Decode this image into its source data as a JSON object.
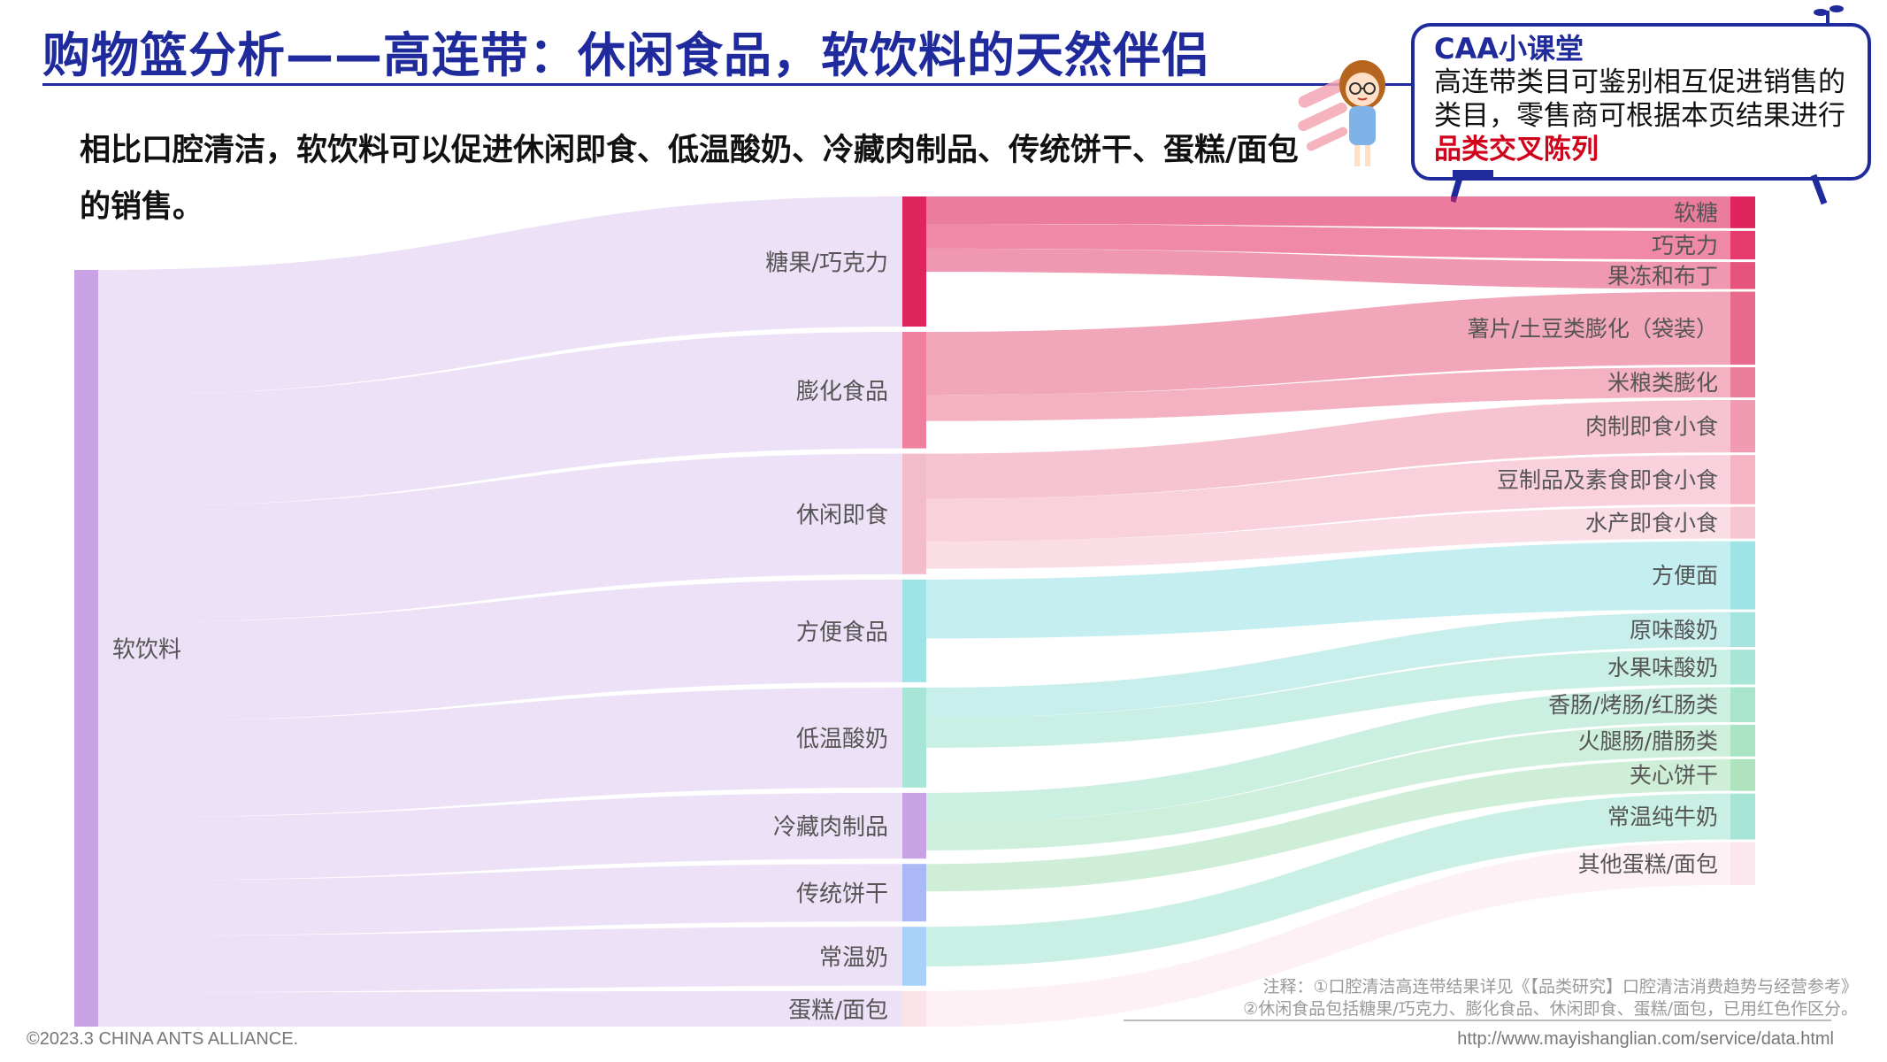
{
  "header": {
    "title": "购物篮分析——高连带：休闲食品，软饮料的天然伴侣",
    "subtitle": "相比口腔清洁，软饮料可以促进休闲即食、低温酸奶、冷藏肉制品、传统饼干、蛋糕/面包的销售。"
  },
  "tip": {
    "title": "CAA小课堂",
    "body_prefix": "高连带类目可鉴别相互促进销售的类目，零售商可根据本页结果进行",
    "body_highlight": "品类交叉陈列"
  },
  "notes": {
    "line1": "注释：①口腔清洁高连带结果详见《【品类研究】口腔清洁消费趋势与经营参考》",
    "line2": "②休闲食品包括糖果/巧克力、膨化食品、休闲即食、蛋糕/面包，已用红色作区分。"
  },
  "footer": {
    "copyright": "©2023.3 CHINA ANTS ALLIANCE.",
    "url": "http://www.mayishanglian.com/service/data.html"
  },
  "colors": {
    "title": "#1f2a9c",
    "highlight": "#d0021b",
    "source_node": "#c9a2e6",
    "source_flow": "#e9dcf5"
  },
  "chart_data": {
    "type": "sankey",
    "source": {
      "name": "软饮料",
      "color": "#c9a2e6"
    },
    "level1": [
      {
        "name": "糖果/巧克力",
        "value": 9.5,
        "color": "#e0245e"
      },
      {
        "name": "膨化食品",
        "value": 8.5,
        "color": "#ee7f9e"
      },
      {
        "name": "休闲即食",
        "value": 8.8,
        "color": "#f3bccb"
      },
      {
        "name": "方便食品",
        "value": 7.5,
        "color": "#9ee3e6"
      },
      {
        "name": "低温酸奶",
        "value": 7.3,
        "color": "#a7e6d6"
      },
      {
        "name": "冷藏肉制品",
        "value": 4.8,
        "color": "#c9a2e6"
      },
      {
        "name": "传统饼干",
        "value": 4.2,
        "color": "#aab8f5"
      },
      {
        "name": "常温奶",
        "value": 4.3,
        "color": "#a8d1f7"
      },
      {
        "name": "蛋糕/面包",
        "value": 2.6,
        "color": "#fbe3ea"
      }
    ],
    "level2": [
      {
        "name": "软糖",
        "parent": 0,
        "value": 2.0,
        "color": "#e0245e"
      },
      {
        "name": "巧克力",
        "parent": 0,
        "value": 1.8,
        "color": "#e43a6c"
      },
      {
        "name": "果冻和布丁",
        "parent": 0,
        "value": 1.7,
        "color": "#e6547d"
      },
      {
        "name": "薯片/土豆类膨化（袋装）",
        "parent": 1,
        "value": 4.6,
        "color": "#e86a8c"
      },
      {
        "name": "米粮类膨化",
        "parent": 1,
        "value": 1.9,
        "color": "#ec7d9a"
      },
      {
        "name": "肉制即食小食",
        "parent": 2,
        "value": 3.3,
        "color": "#f09bb2"
      },
      {
        "name": "豆制品及素食即食小食",
        "parent": 2,
        "value": 3.1,
        "color": "#f5b3c4"
      },
      {
        "name": "水产即食小食",
        "parent": 2,
        "value": 2.0,
        "color": "#f7c6d3"
      },
      {
        "name": "方便面",
        "parent": 3,
        "value": 4.3,
        "color": "#9ee3e6"
      },
      {
        "name": "原味酸奶",
        "parent": 4,
        "value": 2.2,
        "color": "#a4e5df"
      },
      {
        "name": "水果味酸奶",
        "parent": 4,
        "value": 2.2,
        "color": "#a7e6d6"
      },
      {
        "name": "香肠/烤肠/红肠类",
        "parent": 5,
        "value": 2.2,
        "color": "#a8e5cc"
      },
      {
        "name": "火腿肠/腊肠类",
        "parent": 5,
        "value": 2.0,
        "color": "#abe4c4"
      },
      {
        "name": "夹心饼干",
        "parent": 6,
        "value": 2.0,
        "color": "#aee3bd"
      },
      {
        "name": "常温纯牛奶",
        "parent": 7,
        "value": 2.9,
        "color": "#a7e6d6"
      },
      {
        "name": "其他蛋糕/面包",
        "parent": 8,
        "value": 2.7,
        "color": "#fde7ee"
      }
    ]
  }
}
